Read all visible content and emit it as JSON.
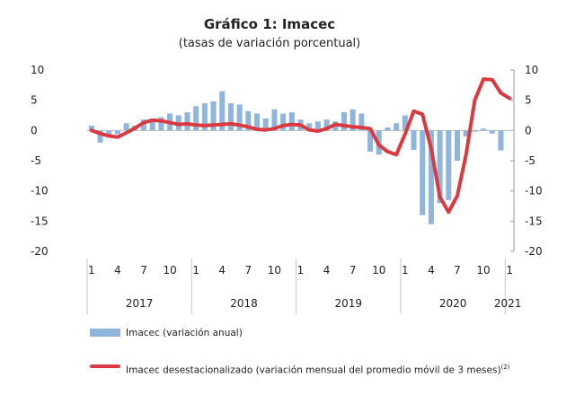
{
  "chart_data": {
    "type": "bar+line",
    "title": "Gráfico 1: Imacec",
    "subtitle": "(tasas de variación porcentual)",
    "ylim": [
      -20,
      10
    ],
    "y_ticks": [
      10,
      5,
      0,
      -5,
      -10,
      -15,
      -20
    ],
    "x_month_labels": [
      "1",
      "4",
      "7",
      "10",
      "1",
      "4",
      "7",
      "10",
      "1",
      "4",
      "7",
      "10",
      "1",
      "4",
      "7",
      "10",
      "1"
    ],
    "years": [
      "2017",
      "2018",
      "2019",
      "2020",
      "2021"
    ],
    "series": [
      {
        "name": "Imacec (variación anual)",
        "kind": "bar",
        "color": "#8fb5dc",
        "values": [
          0.8,
          -2.0,
          -0.8,
          -0.6,
          1.2,
          0.8,
          1.8,
          2.0,
          2.2,
          2.8,
          2.5,
          3.0,
          4.0,
          4.5,
          4.8,
          6.5,
          4.5,
          4.3,
          3.2,
          2.8,
          2.0,
          3.5,
          2.8,
          3.0,
          1.8,
          1.2,
          1.5,
          1.8,
          1.5,
          3.0,
          3.5,
          2.8,
          -3.5,
          -4.0,
          0.5,
          1.2,
          2.5,
          -3.2,
          -14.0,
          -15.5,
          -12.0,
          -11.5,
          -5.0,
          -1.0,
          -0.2,
          0.3,
          -0.5,
          -3.3
        ]
      },
      {
        "name": "Imacec desestacionalizado (variación mensual del promedio móvil de 3 meses)",
        "name_note": "(2)",
        "kind": "line",
        "color": "#d9393f",
        "values": [
          0.0,
          -0.5,
          -0.9,
          -1.1,
          -0.4,
          0.4,
          1.3,
          1.7,
          1.6,
          1.3,
          1.0,
          1.1,
          0.9,
          0.8,
          0.9,
          1.0,
          1.1,
          0.9,
          0.6,
          0.2,
          0.1,
          0.3,
          0.8,
          1.0,
          0.9,
          0.1,
          -0.1,
          0.3,
          1.0,
          0.8,
          0.6,
          0.5,
          0.3,
          -2.4,
          -3.5,
          -4.0,
          -0.6,
          3.2,
          2.7,
          -3.0,
          -11.0,
          -13.5,
          -10.8,
          -4.0,
          5.0,
          8.5,
          8.4,
          6.2,
          5.3
        ]
      }
    ],
    "legend_position": "bottom",
    "grid": false
  }
}
